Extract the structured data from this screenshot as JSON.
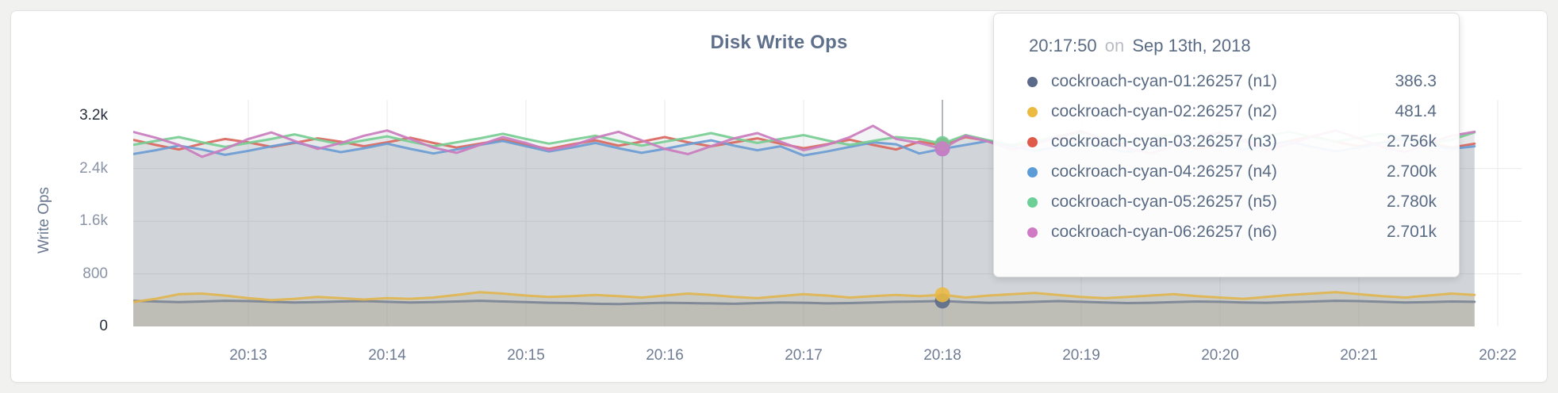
{
  "chart": {
    "title": "Disk Write Ops",
    "ylabel": "Write Ops"
  },
  "tooltip": {
    "time": "20:17:50",
    "joiner": "on",
    "date": "Sep 13th, 2018",
    "rows": [
      {
        "label": "cockroach-cyan-01:26257 (n1)",
        "value": "386.3",
        "color": "#5b6a88"
      },
      {
        "label": "cockroach-cyan-02:26257 (n2)",
        "value": "481.4",
        "color": "#eaba41"
      },
      {
        "label": "cockroach-cyan-03:26257 (n3)",
        "value": "2.756k",
        "color": "#e05a4c"
      },
      {
        "label": "cockroach-cyan-04:26257 (n4)",
        "value": "2.700k",
        "color": "#5c9cd6"
      },
      {
        "label": "cockroach-cyan-05:26257 (n5)",
        "value": "2.780k",
        "color": "#6ccf95"
      },
      {
        "label": "cockroach-cyan-06:26257 (n6)",
        "value": "2.701k",
        "color": "#d07ac4"
      }
    ]
  },
  "colors": {
    "page_bg": "#f1f1f0",
    "card_bg": "#ffffff",
    "card_border": "#e3e3e3",
    "grid_line": "#e9e9eb",
    "hover_guideline": "#b3b7bf",
    "title_text": "#5f708c",
    "axis_tick_text": "#6e7b93",
    "axis_tick_text_emphasis": "#272e3d",
    "tooltip_text": "#5a6b84",
    "tooltip_muted_text": "#b9bdc3"
  },
  "chart_data": {
    "type": "line",
    "title": "Disk Write Ops",
    "xlabel": "",
    "ylabel": "Write Ops",
    "ylim": [
      0,
      3200
    ],
    "grid": true,
    "legend_position": "tooltip",
    "x_start": "20:12:10",
    "x_end": "20:21:50",
    "x_step_seconds": 10,
    "x_first_tick_offset_seconds": 50,
    "x_ticks": [
      "20:13",
      "20:14",
      "20:15",
      "20:16",
      "20:17",
      "20:18",
      "20:19",
      "20:20",
      "20:21",
      "20:22"
    ],
    "y_ticks": [
      {
        "label": "0",
        "value": 0,
        "emphasis": true
      },
      {
        "label": "800",
        "value": 800,
        "emphasis": false
      },
      {
        "label": "1.6k",
        "value": 1600,
        "emphasis": false
      },
      {
        "label": "2.4k",
        "value": 2400,
        "emphasis": false
      },
      {
        "label": "3.2k",
        "value": 3200,
        "emphasis": true
      }
    ],
    "grid_y_values": [
      800,
      1600,
      2400
    ],
    "hover": {
      "time": "20:17:50",
      "date": "Sep 13th, 2018",
      "index": 35,
      "values": {
        "n1": 386.3,
        "n2": 481.4,
        "n3": 2756,
        "n4": 2700,
        "n5": 2780,
        "n6": 2701
      }
    },
    "series": [
      {
        "id": "n1",
        "name": "cockroach-cyan-01:26257 (n1)",
        "line_color": "#7b8495",
        "dot_color": "#5b6a88",
        "fill": "rgba(139,132,108,0.20)",
        "values": [
          390,
          380,
          370,
          380,
          390,
          385,
          375,
          365,
          370,
          380,
          385,
          375,
          365,
          370,
          380,
          390,
          380,
          370,
          360,
          355,
          345,
          340,
          350,
          360,
          355,
          350,
          345,
          355,
          365,
          360,
          350,
          355,
          365,
          375,
          380,
          386.3,
          370,
          360,
          365,
          375,
          385,
          375,
          365,
          355,
          360,
          370,
          380,
          375,
          365,
          360,
          370,
          380,
          390,
          385,
          375,
          365,
          370,
          380,
          375
        ]
      },
      {
        "id": "n2",
        "name": "cockroach-cyan-02:26257 (n2)",
        "line_color": "#e0b54f",
        "dot_color": "#eaba41",
        "fill": "rgba(205,185,128,0.22)",
        "values": [
          370,
          420,
          490,
          500,
          470,
          430,
          400,
          420,
          450,
          430,
          410,
          430,
          420,
          440,
          480,
          520,
          500,
          470,
          450,
          460,
          480,
          460,
          440,
          470,
          500,
          480,
          450,
          430,
          460,
          490,
          470,
          440,
          460,
          480,
          460,
          481.4,
          440,
          470,
          490,
          510,
          480,
          450,
          430,
          450,
          470,
          490,
          460,
          440,
          420,
          450,
          480,
          500,
          520,
          490,
          460,
          440,
          470,
          500,
          480
        ]
      },
      {
        "id": "n3",
        "name": "cockroach-cyan-03:26257 (n3)",
        "line_color": "#da675e",
        "dot_color": "#e05a4c",
        "fill": "rgba(131,137,148,0.10)",
        "values": [
          2840,
          2760,
          2690,
          2780,
          2850,
          2800,
          2730,
          2790,
          2860,
          2810,
          2740,
          2800,
          2870,
          2790,
          2720,
          2780,
          2840,
          2760,
          2700,
          2770,
          2830,
          2750,
          2810,
          2880,
          2800,
          2740,
          2800,
          2860,
          2780,
          2710,
          2770,
          2840,
          2760,
          2690,
          2810,
          2756,
          2880,
          2820,
          2750,
          2810,
          2880,
          2800,
          2730,
          2790,
          2850,
          2770,
          2700,
          2760,
          2830,
          2750,
          2820,
          2890,
          2810,
          2740,
          2800,
          2870,
          2790,
          2720,
          2780
        ]
      },
      {
        "id": "n4",
        "name": "cockroach-cyan-04:26257 (n4)",
        "line_color": "#6b9cd3",
        "dot_color": "#5c9cd6",
        "fill": "rgba(131,137,148,0.10)",
        "values": [
          2620,
          2680,
          2750,
          2690,
          2610,
          2670,
          2740,
          2800,
          2720,
          2650,
          2710,
          2780,
          2700,
          2630,
          2690,
          2760,
          2820,
          2740,
          2660,
          2720,
          2790,
          2710,
          2640,
          2700,
          2770,
          2830,
          2750,
          2680,
          2740,
          2600,
          2660,
          2730,
          2800,
          2770,
          2630,
          2700,
          2760,
          2820,
          2740,
          2670,
          2730,
          2800,
          2720,
          2650,
          2710,
          2780,
          2840,
          2760,
          2690,
          2750,
          2810,
          2730,
          2660,
          2720,
          2790,
          2850,
          2770,
          2700,
          2740
        ]
      },
      {
        "id": "n5",
        "name": "cockroach-cyan-05:26257 (n5)",
        "line_color": "#77cd92",
        "dot_color": "#6ccf95",
        "fill": "rgba(131,137,148,0.10)",
        "values": [
          2760,
          2820,
          2880,
          2800,
          2730,
          2790,
          2850,
          2920,
          2840,
          2770,
          2830,
          2890,
          2810,
          2740,
          2800,
          2860,
          2930,
          2850,
          2780,
          2840,
          2900,
          2820,
          2750,
          2810,
          2870,
          2940,
          2860,
          2790,
          2850,
          2910,
          2830,
          2760,
          2820,
          2880,
          2850,
          2780,
          2910,
          2830,
          2760,
          2820,
          2890,
          2950,
          2870,
          2800,
          2860,
          2920,
          2840,
          2770,
          2830,
          2900,
          2960,
          2880,
          2810,
          2870,
          2930,
          2850,
          2780,
          2840,
          2950
        ]
      },
      {
        "id": "n6",
        "name": "cockroach-cyan-06:26257 (n6)",
        "line_color": "#ca7cbe",
        "dot_color": "#d07ac4",
        "fill": "rgba(131,137,148,0.10)",
        "values": [
          2960,
          2870,
          2760,
          2580,
          2700,
          2850,
          2950,
          2820,
          2700,
          2790,
          2900,
          2980,
          2850,
          2720,
          2640,
          2760,
          2880,
          2790,
          2680,
          2750,
          2870,
          2960,
          2830,
          2700,
          2620,
          2740,
          2860,
          2940,
          2810,
          2680,
          2760,
          2880,
          3050,
          2850,
          2790,
          2701,
          2900,
          2810,
          2690,
          2770,
          2890,
          2970,
          2840,
          2710,
          2630,
          2750,
          2870,
          2950,
          2820,
          2690,
          2770,
          2890,
          2980,
          2860,
          2730,
          2650,
          2780,
          2900,
          2960
        ]
      }
    ]
  }
}
